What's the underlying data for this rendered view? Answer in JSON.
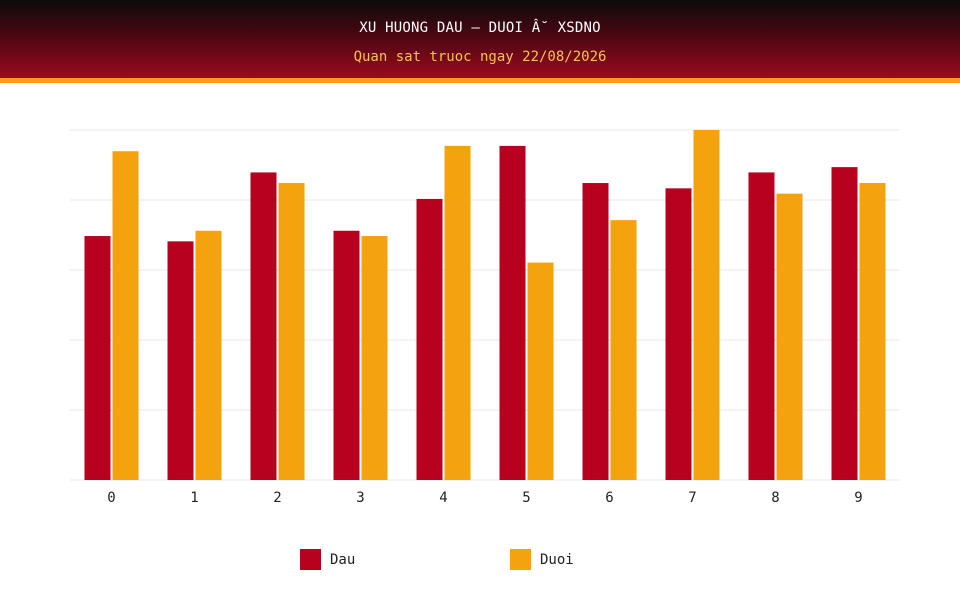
{
  "header": {
    "title": "XU HUONG DAU – DUOI Â˘ XSDNO",
    "subtitle": "Quan sat truoc ngay 22/08/2026"
  },
  "colors": {
    "dau": "#b8001f",
    "duoi": "#f5a20f",
    "grid": "#e9e9e9"
  },
  "chart_data": {
    "type": "bar",
    "categories": [
      "0",
      "1",
      "2",
      "3",
      "4",
      "5",
      "6",
      "7",
      "8",
      "9"
    ],
    "series": [
      {
        "name": "Dau",
        "values": [
          46,
          45,
          58,
          47,
          53,
          63,
          56,
          55,
          58,
          59
        ]
      },
      {
        "name": "Duoi",
        "values": [
          62,
          47,
          56,
          46,
          63,
          41,
          49,
          66,
          54,
          56
        ]
      }
    ],
    "ylim": [
      0,
      66
    ],
    "grid": true,
    "legend": "bottom"
  }
}
